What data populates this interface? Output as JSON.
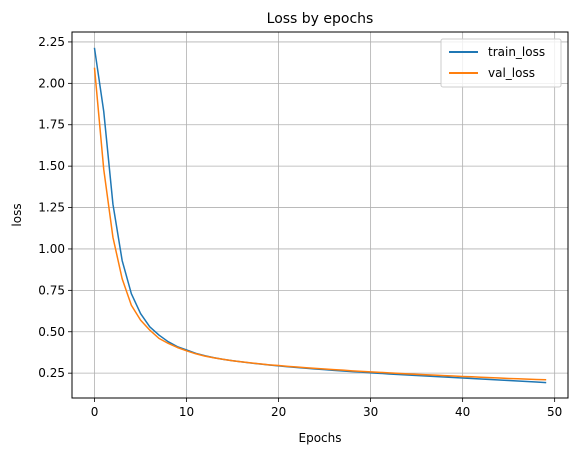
{
  "chart_data": {
    "type": "line",
    "title": "Loss by epochs",
    "xlabel": "Epochs",
    "ylabel": "loss",
    "xlim": [
      -2.45,
      51.45
    ],
    "ylim": [
      0.1,
      2.31
    ],
    "xticks": [
      0,
      10,
      20,
      30,
      40,
      50
    ],
    "yticks": [
      0.25,
      0.5,
      0.75,
      1.0,
      1.25,
      1.5,
      1.75,
      2.0,
      2.25
    ],
    "ytick_labels": [
      "0.25",
      "0.50",
      "0.75",
      "1.00",
      "1.25",
      "1.50",
      "1.75",
      "2.00",
      "2.25"
    ],
    "grid": true,
    "legend_position": "top-right",
    "x": [
      0,
      1,
      2,
      3,
      4,
      5,
      6,
      7,
      8,
      9,
      10,
      11,
      12,
      13,
      14,
      15,
      16,
      17,
      18,
      19,
      20,
      21,
      22,
      23,
      24,
      25,
      26,
      27,
      28,
      29,
      30,
      31,
      32,
      33,
      34,
      35,
      36,
      37,
      38,
      39,
      40,
      41,
      42,
      43,
      44,
      45,
      46,
      47,
      48,
      49
    ],
    "series": [
      {
        "name": "train_loss",
        "color": "#1f77b4",
        "values": [
          2.21,
          1.83,
          1.27,
          0.93,
          0.73,
          0.61,
          0.53,
          0.48,
          0.44,
          0.41,
          0.39,
          0.37,
          0.355,
          0.343,
          0.333,
          0.325,
          0.318,
          0.311,
          0.305,
          0.299,
          0.294,
          0.289,
          0.284,
          0.28,
          0.275,
          0.271,
          0.267,
          0.263,
          0.259,
          0.256,
          0.252,
          0.249,
          0.245,
          0.242,
          0.239,
          0.236,
          0.233,
          0.23,
          0.227,
          0.224,
          0.221,
          0.218,
          0.215,
          0.212,
          0.209,
          0.206,
          0.203,
          0.2,
          0.197,
          0.193
        ]
      },
      {
        "name": "val_loss",
        "color": "#ff7f0e",
        "values": [
          2.09,
          1.48,
          1.07,
          0.82,
          0.66,
          0.57,
          0.51,
          0.46,
          0.43,
          0.405,
          0.385,
          0.367,
          0.353,
          0.342,
          0.333,
          0.325,
          0.318,
          0.312,
          0.306,
          0.3,
          0.296,
          0.291,
          0.287,
          0.283,
          0.279,
          0.275,
          0.271,
          0.268,
          0.264,
          0.261,
          0.258,
          0.255,
          0.252,
          0.249,
          0.246,
          0.243,
          0.24,
          0.238,
          0.235,
          0.233,
          0.23,
          0.228,
          0.225,
          0.223,
          0.221,
          0.218,
          0.216,
          0.214,
          0.212,
          0.21
        ]
      }
    ]
  }
}
